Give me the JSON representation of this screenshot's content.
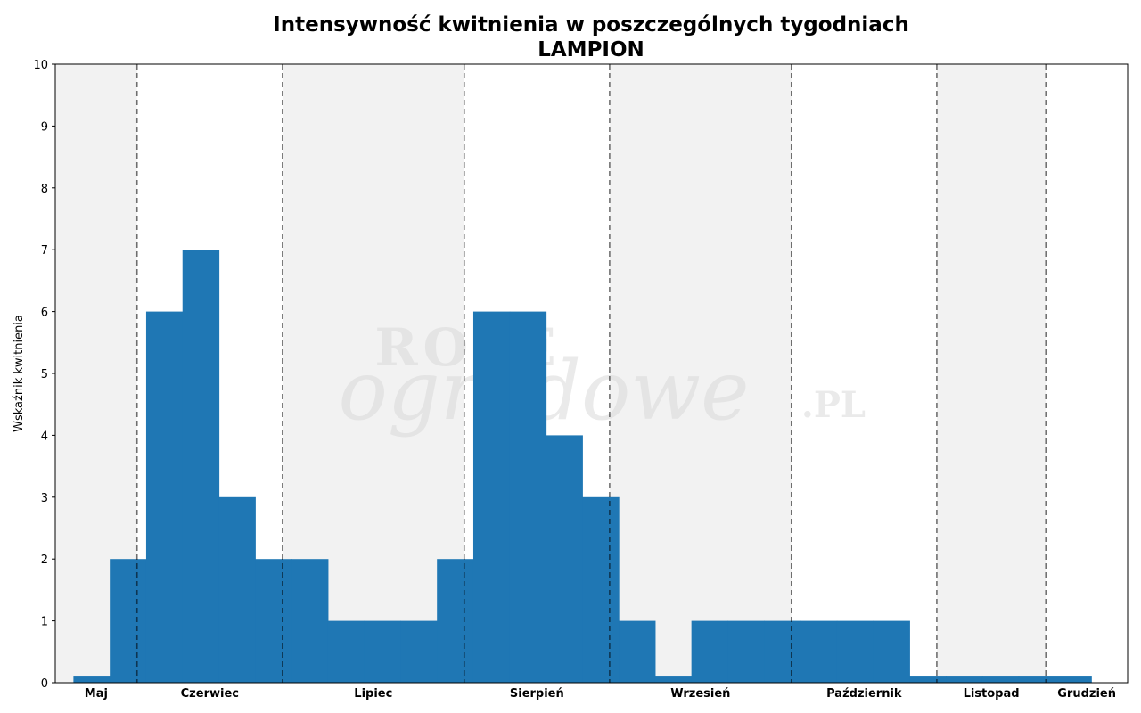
{
  "chart_data": {
    "type": "bar",
    "title": "Intensywność kwitnienia w poszczególnych tygodniach",
    "subtitle": "LAMPION",
    "xlabel": "",
    "ylabel": "Wskaźnik kwitnienia",
    "ylim": [
      0,
      10
    ],
    "yticks": [
      "0",
      "1",
      "2",
      "3",
      "4",
      "5",
      "6",
      "7",
      "8",
      "9",
      "10"
    ],
    "grid": false,
    "bar_color": "#1f77b4",
    "band_color": "#f2f2f2",
    "week_range": [
      0,
      29.5
    ],
    "months": [
      {
        "label": "Maj",
        "start": 0,
        "end": 2.25,
        "shaded": true
      },
      {
        "label": "Czerwiec",
        "start": 2.25,
        "end": 6.25,
        "shaded": false
      },
      {
        "label": "Lipiec",
        "start": 6.25,
        "end": 11.25,
        "shaded": true
      },
      {
        "label": "Sierpień",
        "start": 11.25,
        "end": 15.25,
        "shaded": false
      },
      {
        "label": "Wrzesień",
        "start": 15.25,
        "end": 20.25,
        "shaded": true
      },
      {
        "label": "Październik",
        "start": 20.25,
        "end": 24.25,
        "shaded": false
      },
      {
        "label": "Listopad",
        "start": 24.25,
        "end": 27.25,
        "shaded": true
      },
      {
        "label": "Grudzień",
        "start": 27.25,
        "end": 29.5,
        "shaded": false
      }
    ],
    "weeks": [
      1,
      2,
      3,
      4,
      5,
      6,
      7,
      8,
      9,
      10,
      11,
      12,
      13,
      14,
      15,
      16,
      17,
      18,
      19,
      20,
      21,
      22,
      23,
      24,
      25,
      26,
      27,
      28
    ],
    "values": [
      0.1,
      2,
      6,
      7,
      3,
      2,
      2,
      1,
      1,
      1,
      2,
      6,
      6,
      4,
      3,
      1,
      0.1,
      1,
      1,
      1,
      1,
      1,
      1,
      0.1,
      0.1,
      0.1,
      0.1,
      0.1
    ]
  },
  "watermark": {
    "line1": "ROZE",
    "line2": "ogrodowe",
    "suffix": ".PL"
  }
}
